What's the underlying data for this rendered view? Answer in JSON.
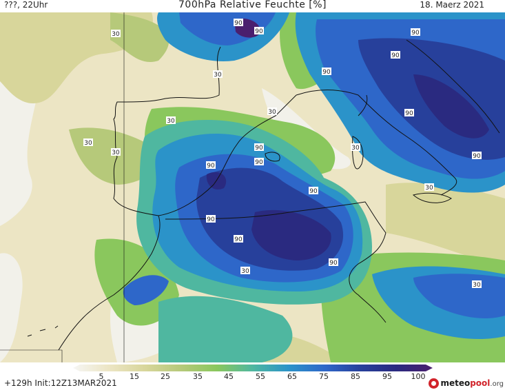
{
  "header": {
    "left": "???, 22Uhr",
    "title": "700hPa Relative Feuchte [%]",
    "date": "18. Maerz 2021"
  },
  "map": {
    "isolines": [
      "90",
      "90",
      "90",
      "90",
      "90",
      "90",
      "90",
      "90",
      "90",
      "90",
      "90",
      "90",
      "90",
      "90",
      "30",
      "30",
      "30",
      "30",
      "30",
      "30",
      "30",
      "30",
      "30",
      "30"
    ],
    "colors": {
      "low": "#f2f1ea",
      "dry": "#ece5c4",
      "tan": "#d8d69b",
      "olive": "#b6c97a",
      "green": "#8ac75d",
      "teal": "#4fb7a0",
      "cyan": "#2b93c9",
      "blue": "#2e67c9",
      "navy": "#27409b",
      "dark": "#2a2a80",
      "purple": "#4a1f6e",
      "coast": "#111111"
    }
  },
  "legend": {
    "ticks": [
      "5",
      "15",
      "25",
      "35",
      "45",
      "55",
      "65",
      "75",
      "85",
      "95",
      "100"
    ]
  },
  "footer": {
    "run": "+129h Init:12Z13MAR2021",
    "brand_main": "meteo",
    "brand_accent": "pool",
    "brand_suffix": ".org"
  }
}
